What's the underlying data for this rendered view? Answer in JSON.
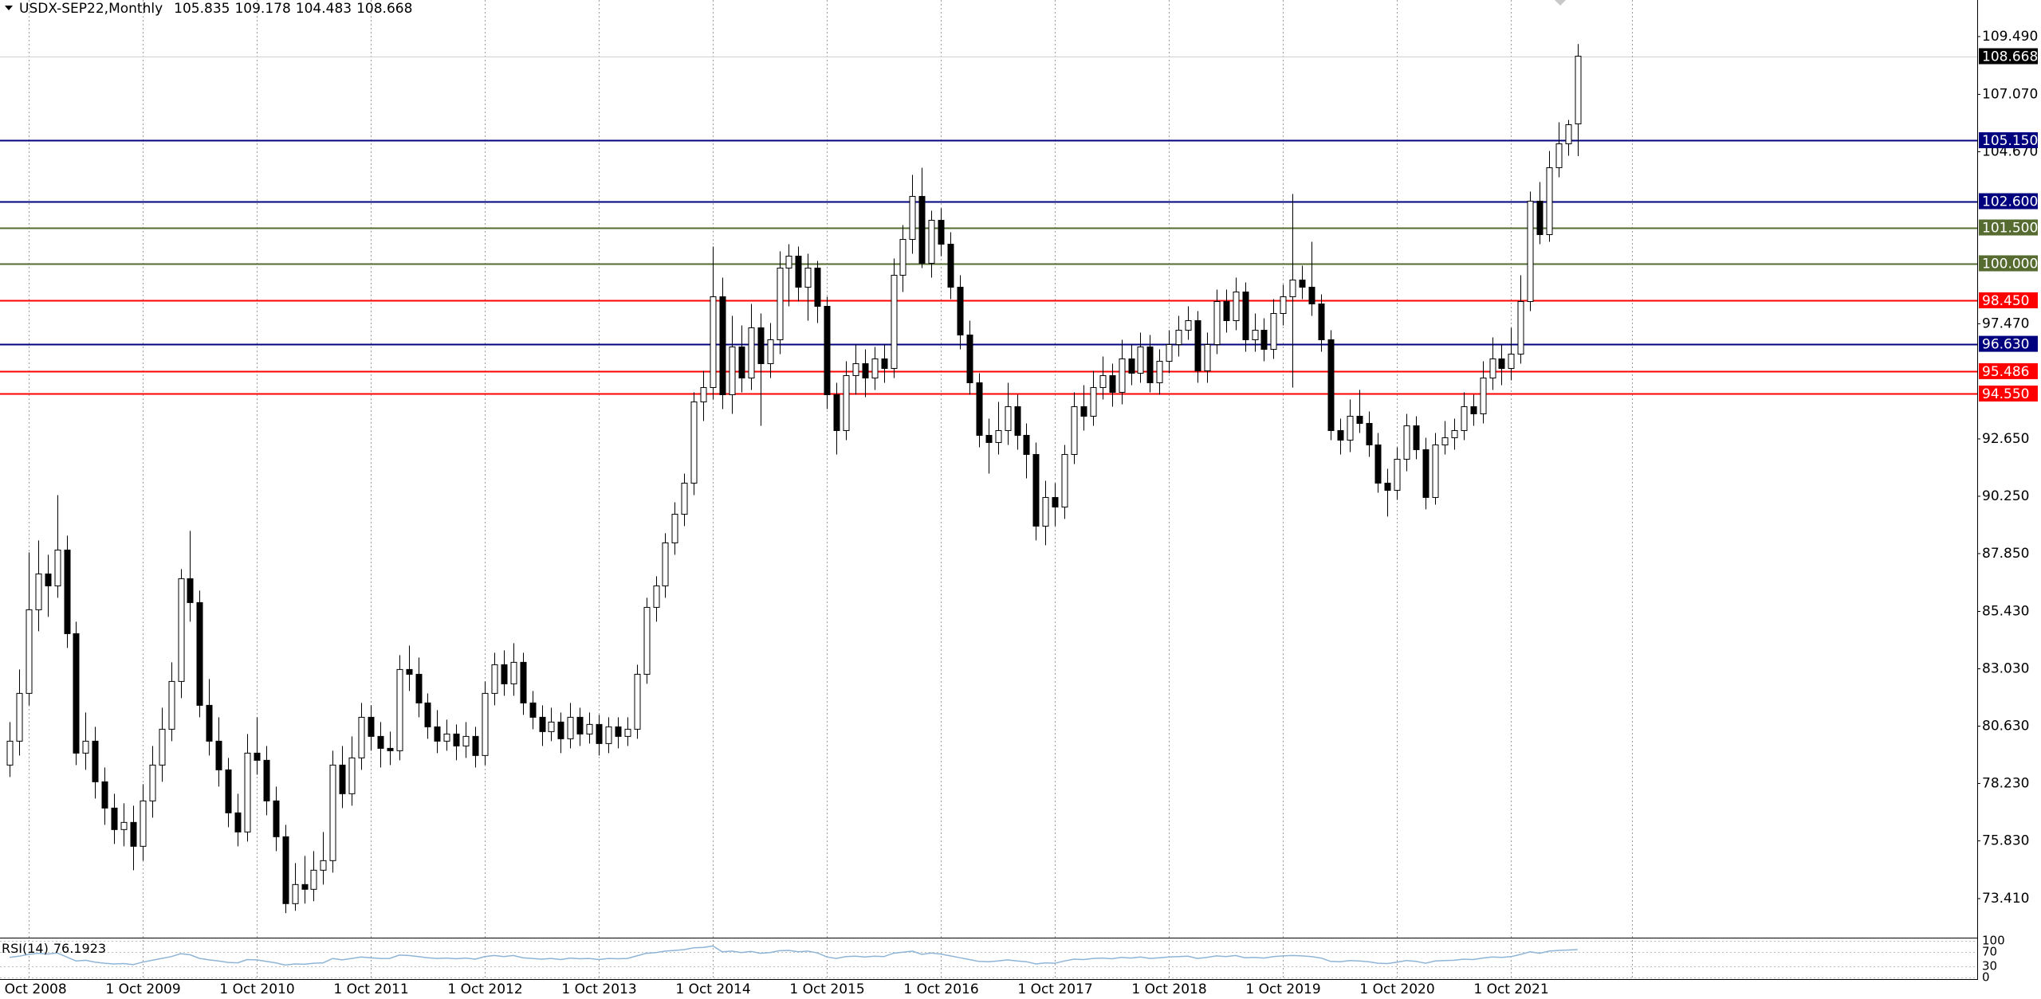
{
  "chart_data": {
    "type": "candlestick",
    "symbol": "USDX-SEP22,Monthly",
    "up_color": "#ffffff",
    "down_color": "#000000",
    "grid": true,
    "ylim": [
      71.81,
      111.02
    ],
    "yticks": [
      {
        "value": 109.49,
        "label": "109.490"
      },
      {
        "value": 107.07,
        "label": "107.070"
      },
      {
        "value": 104.67,
        "label": "104.670"
      },
      {
        "value": 97.47,
        "label": "97.470"
      },
      {
        "value": 92.65,
        "label": "92.650"
      },
      {
        "value": 90.25,
        "label": "90.250"
      },
      {
        "value": 87.85,
        "label": "87.850"
      },
      {
        "value": 85.43,
        "label": "85.430"
      },
      {
        "value": 83.03,
        "label": "83.030"
      },
      {
        "value": 80.63,
        "label": "80.630"
      },
      {
        "value": 78.23,
        "label": "78.230"
      },
      {
        "value": 75.83,
        "label": "75.830"
      },
      {
        "value": 73.41,
        "label": "73.410"
      }
    ],
    "xticks": [
      "1 Oct 2008",
      "1 Oct 2009",
      "1 Oct 2010",
      "1 Oct 2011",
      "1 Oct 2012",
      "1 Oct 2013",
      "1 Oct 2014",
      "1 Oct 2015",
      "1 Oct 2016",
      "1 Oct 2017",
      "1 Oct 2018",
      "1 Oct 2019",
      "1 Oct 2020",
      "1 Oct 2021"
    ],
    "levels": [
      {
        "value": 105.15,
        "label": "105.150",
        "color": "#00007f"
      },
      {
        "value": 102.6,
        "label": "102.600",
        "color": "#00007f"
      },
      {
        "value": 101.5,
        "label": "101.500",
        "color": "#556b2f"
      },
      {
        "value": 100.0,
        "label": "100.000",
        "color": "#556b2f"
      },
      {
        "value": 98.45,
        "label": "98.450",
        "color": "#ff0000"
      },
      {
        "value": 96.63,
        "label": "96.630",
        "color": "#00007f"
      },
      {
        "value": 95.486,
        "label": "95.486",
        "color": "#ff0000"
      },
      {
        "value": 94.55,
        "label": "94.550",
        "color": "#ff0000"
      }
    ],
    "candles": [
      [
        79.0,
        80.8,
        78.5,
        80.0
      ],
      [
        80.0,
        83.0,
        79.4,
        82.0
      ],
      [
        82.0,
        87.9,
        81.5,
        85.5
      ],
      [
        85.5,
        88.4,
        84.6,
        87.0
      ],
      [
        87.0,
        87.8,
        85.2,
        86.5
      ],
      [
        86.5,
        90.3,
        86.0,
        88.0
      ],
      [
        88.0,
        88.6,
        83.9,
        84.5
      ],
      [
        84.5,
        85.0,
        79.0,
        79.5
      ],
      [
        79.5,
        81.2,
        78.8,
        80.0
      ],
      [
        80.0,
        80.6,
        77.6,
        78.3
      ],
      [
        78.3,
        78.9,
        76.5,
        77.2
      ],
      [
        77.2,
        77.8,
        75.7,
        76.3
      ],
      [
        76.3,
        77.4,
        75.6,
        76.6
      ],
      [
        76.6,
        77.3,
        74.6,
        75.6
      ],
      [
        75.6,
        78.2,
        75.0,
        77.5
      ],
      [
        77.5,
        79.8,
        76.8,
        79.0
      ],
      [
        79.0,
        81.4,
        78.3,
        80.5
      ],
      [
        80.5,
        83.3,
        80.0,
        82.5
      ],
      [
        82.5,
        87.2,
        81.8,
        86.8
      ],
      [
        86.8,
        88.8,
        85.0,
        85.8
      ],
      [
        85.8,
        86.3,
        81.0,
        81.5
      ],
      [
        81.5,
        82.6,
        79.4,
        80.0
      ],
      [
        80.0,
        81.0,
        78.1,
        78.8
      ],
      [
        78.8,
        79.3,
        76.4,
        77.0
      ],
      [
        77.0,
        77.8,
        75.6,
        76.2
      ],
      [
        76.2,
        80.3,
        75.8,
        79.5
      ],
      [
        79.5,
        81.0,
        78.6,
        79.2
      ],
      [
        79.2,
        79.8,
        76.9,
        77.5
      ],
      [
        77.5,
        78.1,
        75.4,
        76.0
      ],
      [
        76.0,
        76.5,
        72.8,
        73.2
      ],
      [
        73.2,
        74.9,
        72.9,
        74.0
      ],
      [
        74.0,
        75.2,
        73.2,
        73.8
      ],
      [
        73.8,
        75.4,
        73.3,
        74.6
      ],
      [
        74.6,
        76.2,
        74.0,
        75.0
      ],
      [
        75.0,
        79.6,
        74.5,
        79.0
      ],
      [
        79.0,
        79.8,
        77.2,
        77.8
      ],
      [
        77.8,
        80.2,
        77.3,
        79.3
      ],
      [
        79.3,
        81.6,
        78.8,
        81.0
      ],
      [
        81.0,
        81.5,
        79.6,
        80.2
      ],
      [
        80.2,
        80.8,
        78.9,
        79.7
      ],
      [
        79.7,
        80.4,
        79.0,
        79.6
      ],
      [
        79.6,
        83.6,
        79.2,
        83.0
      ],
      [
        83.0,
        84.0,
        82.1,
        82.8
      ],
      [
        82.8,
        83.5,
        81.0,
        81.6
      ],
      [
        81.6,
        82.0,
        80.1,
        80.6
      ],
      [
        80.6,
        81.3,
        79.5,
        80.0
      ],
      [
        80.0,
        80.9,
        79.6,
        80.3
      ],
      [
        80.3,
        80.7,
        79.2,
        79.8
      ],
      [
        79.8,
        80.8,
        79.3,
        80.2
      ],
      [
        80.2,
        80.6,
        78.9,
        79.4
      ],
      [
        79.4,
        82.5,
        79.0,
        82.0
      ],
      [
        82.0,
        83.7,
        81.5,
        83.2
      ],
      [
        83.2,
        83.8,
        81.9,
        82.4
      ],
      [
        82.4,
        84.1,
        81.9,
        83.3
      ],
      [
        83.3,
        83.7,
        81.1,
        81.6
      ],
      [
        81.6,
        82.1,
        80.5,
        81.0
      ],
      [
        81.0,
        81.5,
        79.8,
        80.4
      ],
      [
        80.4,
        81.4,
        80.0,
        80.8
      ],
      [
        80.8,
        81.2,
        79.5,
        80.1
      ],
      [
        80.1,
        81.6,
        79.7,
        81.0
      ],
      [
        81.0,
        81.4,
        79.8,
        80.3
      ],
      [
        80.3,
        81.2,
        79.9,
        80.7
      ],
      [
        80.7,
        81.1,
        79.4,
        79.9
      ],
      [
        79.9,
        81.0,
        79.5,
        80.6
      ],
      [
        80.6,
        81.0,
        79.7,
        80.2
      ],
      [
        80.2,
        81.0,
        79.8,
        80.5
      ],
      [
        80.5,
        83.2,
        80.1,
        82.8
      ],
      [
        82.8,
        86.0,
        82.4,
        85.6
      ],
      [
        85.6,
        86.9,
        85.0,
        86.5
      ],
      [
        86.5,
        88.7,
        86.0,
        88.3
      ],
      [
        88.3,
        90.0,
        87.8,
        89.5
      ],
      [
        89.5,
        91.2,
        89.0,
        90.8
      ],
      [
        90.8,
        94.6,
        90.3,
        94.2
      ],
      [
        94.2,
        95.5,
        93.4,
        94.8
      ],
      [
        94.8,
        100.7,
        94.3,
        98.6
      ],
      [
        98.6,
        99.4,
        93.9,
        94.5
      ],
      [
        94.5,
        97.8,
        93.7,
        96.5
      ],
      [
        96.5,
        97.4,
        94.6,
        95.2
      ],
      [
        95.2,
        98.3,
        94.7,
        97.3
      ],
      [
        97.3,
        97.9,
        93.2,
        95.8
      ],
      [
        95.8,
        97.5,
        95.2,
        96.8
      ],
      [
        96.8,
        100.5,
        96.2,
        99.8
      ],
      [
        99.8,
        100.8,
        98.2,
        100.3
      ],
      [
        100.3,
        100.7,
        98.4,
        99.0
      ],
      [
        99.0,
        100.4,
        97.6,
        99.8
      ],
      [
        99.8,
        100.1,
        97.5,
        98.2
      ],
      [
        98.2,
        98.6,
        93.9,
        94.5
      ],
      [
        94.5,
        95.0,
        92.0,
        93.0
      ],
      [
        93.0,
        95.9,
        92.6,
        95.3
      ],
      [
        95.3,
        96.6,
        94.5,
        95.8
      ],
      [
        95.8,
        96.4,
        94.4,
        95.2
      ],
      [
        95.2,
        96.5,
        94.7,
        96.0
      ],
      [
        96.0,
        96.6,
        95.0,
        95.6
      ],
      [
        95.6,
        100.2,
        95.2,
        99.5
      ],
      [
        99.5,
        101.6,
        98.8,
        101.0
      ],
      [
        101.0,
        103.7,
        100.4,
        102.8
      ],
      [
        102.8,
        104.0,
        99.8,
        100.0
      ],
      [
        100.0,
        102.2,
        99.4,
        101.8
      ],
      [
        101.8,
        102.3,
        100.3,
        100.8
      ],
      [
        100.8,
        101.3,
        98.5,
        99.0
      ],
      [
        99.0,
        99.5,
        96.4,
        97.0
      ],
      [
        97.0,
        97.6,
        94.5,
        95.0
      ],
      [
        95.0,
        95.4,
        92.3,
        92.8
      ],
      [
        92.8,
        93.5,
        91.2,
        92.5
      ],
      [
        92.5,
        94.2,
        92.0,
        93.0
      ],
      [
        93.0,
        95.0,
        92.4,
        94.0
      ],
      [
        94.0,
        94.5,
        92.2,
        92.8
      ],
      [
        92.8,
        93.3,
        91.0,
        92.0
      ],
      [
        92.0,
        92.5,
        88.4,
        89.0
      ],
      [
        89.0,
        90.9,
        88.2,
        90.2
      ],
      [
        90.2,
        90.8,
        89.0,
        89.8
      ],
      [
        89.8,
        92.4,
        89.3,
        92.0
      ],
      [
        92.0,
        94.6,
        91.6,
        94.0
      ],
      [
        94.0,
        94.9,
        93.0,
        93.6
      ],
      [
        93.6,
        95.5,
        93.2,
        94.8
      ],
      [
        94.8,
        96.1,
        94.3,
        95.3
      ],
      [
        95.3,
        95.8,
        94.0,
        94.6
      ],
      [
        94.6,
        96.8,
        94.1,
        96.0
      ],
      [
        96.0,
        96.6,
        94.9,
        95.4
      ],
      [
        95.4,
        97.1,
        95.0,
        96.5
      ],
      [
        96.5,
        97.0,
        94.6,
        95.0
      ],
      [
        95.0,
        96.4,
        94.5,
        95.9
      ],
      [
        95.9,
        97.2,
        95.4,
        96.6
      ],
      [
        96.6,
        97.8,
        96.1,
        97.2
      ],
      [
        97.2,
        98.2,
        96.8,
        97.6
      ],
      [
        97.6,
        98.0,
        95.0,
        95.5
      ],
      [
        95.5,
        97.1,
        95.0,
        96.6
      ],
      [
        96.6,
        98.9,
        96.2,
        98.4
      ],
      [
        98.4,
        98.9,
        97.1,
        97.6
      ],
      [
        97.6,
        99.4,
        97.2,
        98.8
      ],
      [
        98.8,
        99.2,
        96.3,
        96.8
      ],
      [
        96.8,
        97.9,
        96.3,
        97.2
      ],
      [
        97.2,
        97.7,
        95.9,
        96.4
      ],
      [
        96.4,
        98.5,
        96.0,
        97.9
      ],
      [
        97.9,
        99.1,
        97.4,
        98.6
      ],
      [
        98.6,
        102.9,
        94.8,
        99.3
      ],
      [
        99.3,
        99.9,
        98.5,
        99.0
      ],
      [
        99.0,
        100.9,
        97.8,
        98.3
      ],
      [
        98.3,
        98.7,
        96.3,
        96.8
      ],
      [
        96.8,
        97.2,
        92.6,
        93.0
      ],
      [
        93.0,
        93.5,
        92.0,
        92.6
      ],
      [
        92.6,
        94.3,
        92.1,
        93.6
      ],
      [
        93.6,
        94.7,
        92.9,
        93.3
      ],
      [
        93.3,
        93.8,
        91.9,
        92.4
      ],
      [
        92.4,
        92.9,
        90.4,
        90.8
      ],
      [
        90.8,
        91.4,
        89.4,
        90.5
      ],
      [
        90.5,
        92.3,
        90.1,
        91.8
      ],
      [
        91.8,
        93.7,
        91.3,
        93.2
      ],
      [
        93.2,
        93.6,
        91.8,
        92.2
      ],
      [
        92.2,
        92.7,
        89.7,
        90.2
      ],
      [
        90.2,
        92.9,
        89.9,
        92.4
      ],
      [
        92.4,
        93.4,
        92.0,
        92.7
      ],
      [
        92.7,
        93.5,
        92.2,
        93.0
      ],
      [
        93.0,
        94.6,
        92.6,
        94.0
      ],
      [
        94.0,
        94.5,
        93.2,
        93.7
      ],
      [
        93.7,
        95.9,
        93.3,
        95.2
      ],
      [
        95.2,
        96.9,
        94.7,
        96.0
      ],
      [
        96.0,
        96.6,
        94.9,
        95.6
      ],
      [
        95.6,
        97.3,
        95.1,
        96.2
      ],
      [
        96.2,
        99.5,
        95.8,
        98.4
      ],
      [
        98.4,
        103.0,
        98.0,
        102.6
      ],
      [
        102.6,
        103.4,
        100.8,
        101.2
      ],
      [
        101.2,
        104.7,
        100.9,
        104.0
      ],
      [
        104.0,
        105.9,
        103.6,
        105.0
      ],
      [
        105.0,
        106.0,
        104.5,
        105.8
      ],
      [
        105.835,
        109.178,
        104.483,
        108.668
      ]
    ],
    "rsi": {
      "name": "RSI(14)",
      "color": "#8fb4d6",
      "ylim": [
        0,
        100
      ],
      "yticks": [
        100,
        70,
        30,
        0
      ],
      "values": [
        55,
        58,
        63,
        66,
        64,
        67,
        56,
        45,
        47,
        42,
        39,
        37,
        38,
        35,
        42,
        47,
        52,
        57,
        65,
        62,
        52,
        48,
        45,
        41,
        40,
        49,
        48,
        44,
        40,
        34,
        37,
        36,
        39,
        40,
        52,
        48,
        52,
        56,
        54,
        52,
        52,
        61,
        60,
        57,
        54,
        52,
        53,
        51,
        53,
        50,
        57,
        60,
        57,
        60,
        54,
        52,
        50,
        52,
        49,
        53,
        51,
        52,
        49,
        52,
        51,
        52,
        59,
        66,
        68,
        72,
        74,
        76,
        81,
        82,
        86,
        70,
        72,
        68,
        71,
        66,
        68,
        73,
        74,
        70,
        72,
        67,
        56,
        52,
        57,
        58,
        56,
        58,
        57,
        66,
        69,
        72,
        63,
        67,
        64,
        59,
        54,
        49,
        44,
        43,
        45,
        48,
        45,
        43,
        37,
        40,
        39,
        45,
        50,
        49,
        52,
        53,
        51,
        55,
        53,
        56,
        52,
        54,
        56,
        57,
        58,
        52,
        55,
        59,
        57,
        60,
        54,
        55,
        53,
        57,
        59,
        60,
        59,
        57,
        53,
        44,
        43,
        46,
        45,
        43,
        39,
        38,
        42,
        46,
        44,
        39,
        45,
        46,
        47,
        50,
        49,
        53,
        56,
        55,
        57,
        63,
        70,
        66,
        72,
        74,
        75,
        76.1923
      ]
    }
  }
}
